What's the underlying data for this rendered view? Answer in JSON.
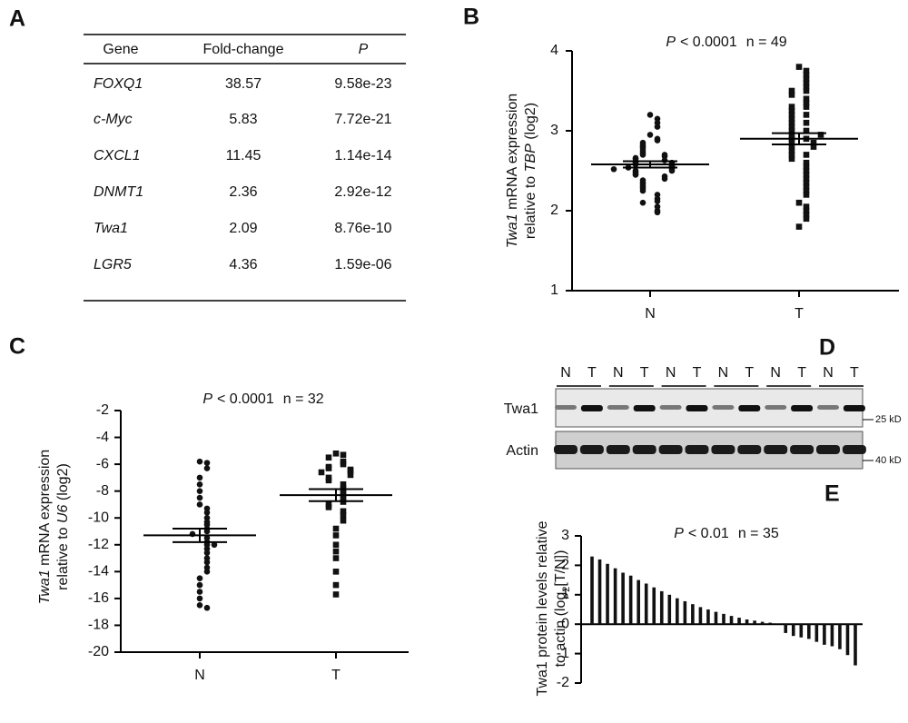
{
  "table": {
    "label": "A",
    "header": [
      "Gene",
      "Fold-change",
      "P"
    ],
    "rows": [
      [
        "FOXQ1",
        "38.57",
        "9.58e-23"
      ],
      [
        "c-Myc",
        "5.83",
        "7.72e-21"
      ],
      [
        "CXCL1",
        "11.45",
        "1.14e-14"
      ],
      [
        "DNMT1",
        "2.36",
        "2.92e-12"
      ],
      [
        "Twa1",
        "2.09",
        "8.76e-10"
      ],
      [
        "LGR5",
        "4.36",
        "1.59e-06"
      ]
    ]
  },
  "blot": {
    "label": "D",
    "lanes": [
      "N",
      "T",
      "N",
      "T",
      "N",
      "T",
      "N",
      "T",
      "N",
      "T",
      "N",
      "T"
    ],
    "rows": [
      "Twa1",
      "Actin"
    ],
    "markers": [
      "25 kD",
      "40 kD"
    ]
  },
  "chart_data": [
    {
      "type": "dot",
      "label": "B",
      "title": [
        "P",
        "< 0.0001",
        "n = 49"
      ],
      "ylabel": [
        [
          "Twa1",
          " mRNA expression"
        ],
        [
          "relative to ",
          "TBP",
          " (log2)"
        ]
      ],
      "categories": [
        "N",
        "T"
      ],
      "markers": [
        "circle",
        "square"
      ],
      "values": [
        [
          3.2,
          3.15,
          3.1,
          3.05,
          2.95,
          2.9,
          2.88,
          2.85,
          2.82,
          2.8,
          2.78,
          2.75,
          2.72,
          2.7,
          2.7,
          2.68,
          2.66,
          2.65,
          2.63,
          2.62,
          2.6,
          2.6,
          2.58,
          2.57,
          2.56,
          2.55,
          2.54,
          2.52,
          2.5,
          2.5,
          2.48,
          2.46,
          2.45,
          2.43,
          2.4,
          2.38,
          2.35,
          2.33,
          2.3,
          2.28,
          2.25,
          2.2,
          2.15,
          2.12,
          2.1,
          2.05,
          2.0,
          1.98,
          2.52
        ],
        [
          3.8,
          3.75,
          3.7,
          3.65,
          3.6,
          3.55,
          3.5,
          3.5,
          3.45,
          3.4,
          3.35,
          3.3,
          3.3,
          3.25,
          3.2,
          3.2,
          3.15,
          3.1,
          3.1,
          3.05,
          3.0,
          3.0,
          2.95,
          2.9,
          2.9,
          2.85,
          2.85,
          2.8,
          2.8,
          2.75,
          2.7,
          2.7,
          2.65,
          2.6,
          2.55,
          2.5,
          2.45,
          2.4,
          2.35,
          2.3,
          2.25,
          2.2,
          2.1,
          2.05,
          2.0,
          1.95,
          1.9,
          1.8,
          2.95
        ]
      ],
      "mean": [
        2.58,
        2.9
      ],
      "sem": [
        0.04,
        0.07
      ],
      "color": "#111",
      "ylim": [
        1,
        4
      ],
      "yticks": [
        1,
        2,
        3,
        4
      ]
    },
    {
      "type": "dot",
      "label": "C",
      "title": [
        "P",
        "< 0.0001",
        "n = 32"
      ],
      "ylabel": [
        [
          "Twa1",
          " mRNA expression"
        ],
        [
          "relative to ",
          "U6",
          " (log2)"
        ]
      ],
      "categories": [
        "N",
        "T"
      ],
      "markers": [
        "circle",
        "square"
      ],
      "values": [
        [
          -5.8,
          -5.9,
          -6.3,
          -7.0,
          -7.5,
          -8.0,
          -8.5,
          -9.0,
          -9.3,
          -9.6,
          -10.0,
          -10.3,
          -10.5,
          -10.8,
          -11.0,
          -11.2,
          -11.5,
          -11.8,
          -12.0,
          -12.3,
          -12.6,
          -13.0,
          -13.3,
          -13.7,
          -14.0,
          -14.5,
          -15.0,
          -15.5,
          -16.0,
          -16.5,
          -16.7,
          -12.0
        ],
        [
          -5.2,
          -5.3,
          -5.5,
          -5.8,
          -6.0,
          -6.2,
          -6.3,
          -6.4,
          -6.5,
          -6.6,
          -6.8,
          -7.0,
          -7.2,
          -7.5,
          -7.8,
          -8.0,
          -8.3,
          -8.6,
          -8.8,
          -9.0,
          -9.2,
          -9.5,
          -9.8,
          -10.2,
          -10.8,
          -11.3,
          -12.0,
          -12.5,
          -13.0,
          -14.0,
          -15.0,
          -15.7
        ]
      ],
      "mean": [
        -11.3,
        -8.3
      ],
      "sem": [
        0.5,
        0.45
      ],
      "color": "#111",
      "ylim": [
        -20,
        -2
      ],
      "yticks": [
        -20,
        -18,
        -16,
        -14,
        -12,
        -10,
        -8,
        -6,
        -4,
        -2
      ]
    },
    {
      "type": "bar",
      "label": "E",
      "title": [
        "P",
        "< 0.01",
        "n = 35"
      ],
      "ylabel": [
        [
          "Twa1 protein levels relative"
        ],
        [
          "to actin (log",
          "2",
          "[T/N])"
        ]
      ],
      "values": [
        2.3,
        2.2,
        2.05,
        1.9,
        1.75,
        1.65,
        1.5,
        1.38,
        1.25,
        1.12,
        1.0,
        0.88,
        0.78,
        0.68,
        0.58,
        0.5,
        0.42,
        0.35,
        0.28,
        0.22,
        0.16,
        0.12,
        0.08,
        0.05,
        0.02,
        -0.3,
        -0.4,
        -0.45,
        -0.5,
        -0.6,
        -0.7,
        -0.75,
        -0.85,
        -1.05,
        -1.4
      ],
      "color": "#111",
      "ylim": [
        -2,
        3
      ],
      "yticks": [
        -2,
        -1,
        0,
        1,
        2,
        3
      ]
    }
  ]
}
